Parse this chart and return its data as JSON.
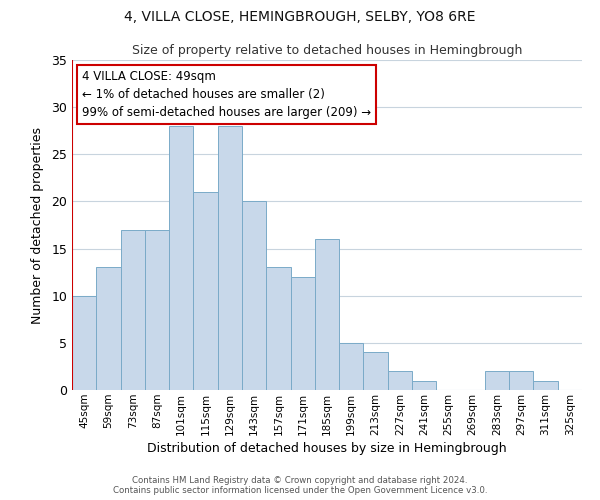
{
  "title": "4, VILLA CLOSE, HEMINGBROUGH, SELBY, YO8 6RE",
  "subtitle": "Size of property relative to detached houses in Hemingbrough",
  "xlabel": "Distribution of detached houses by size in Hemingbrough",
  "ylabel": "Number of detached properties",
  "bar_color": "#c8d8ea",
  "bar_edge_color": "#7aaac8",
  "categories": [
    "45sqm",
    "59sqm",
    "73sqm",
    "87sqm",
    "101sqm",
    "115sqm",
    "129sqm",
    "143sqm",
    "157sqm",
    "171sqm",
    "185sqm",
    "199sqm",
    "213sqm",
    "227sqm",
    "241sqm",
    "255sqm",
    "269sqm",
    "283sqm",
    "297sqm",
    "311sqm",
    "325sqm"
  ],
  "values": [
    10,
    13,
    17,
    17,
    28,
    21,
    28,
    20,
    13,
    12,
    16,
    5,
    4,
    2,
    1,
    0,
    0,
    2,
    2,
    1,
    0
  ],
  "ylim": [
    0,
    35
  ],
  "yticks": [
    0,
    5,
    10,
    15,
    20,
    25,
    30,
    35
  ],
  "annotation_text": "4 VILLA CLOSE: 49sqm\n← 1% of detached houses are smaller (2)\n99% of semi-detached houses are larger (209) →",
  "annotation_box_color": "#ffffff",
  "annotation_box_edge_color": "#cc0000",
  "marker_line_color": "#cc0000",
  "footer_line1": "Contains HM Land Registry data © Crown copyright and database right 2024.",
  "footer_line2": "Contains public sector information licensed under the Open Government Licence v3.0.",
  "background_color": "#ffffff",
  "grid_color": "#c8d4de"
}
